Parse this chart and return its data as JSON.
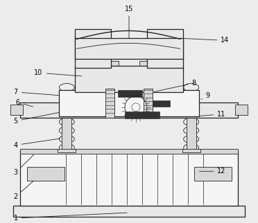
{
  "bg_color": "#ececec",
  "line_color": "#555555",
  "dark_color": "#222222",
  "gray_fill": "#d8d8d8",
  "light_fill": "#e8e8e8",
  "white_fill": "#f5f5f5",
  "dark_fill": "#333333",
  "figsize": [
    3.72,
    3.22
  ],
  "dpi": 100,
  "n_coils": 8,
  "n_slats": 10,
  "n_screw_lines": 7,
  "label_fontsize": 7.0,
  "lw_main": 0.9,
  "lw_thin": 0.6,
  "lw_detail": 0.4
}
